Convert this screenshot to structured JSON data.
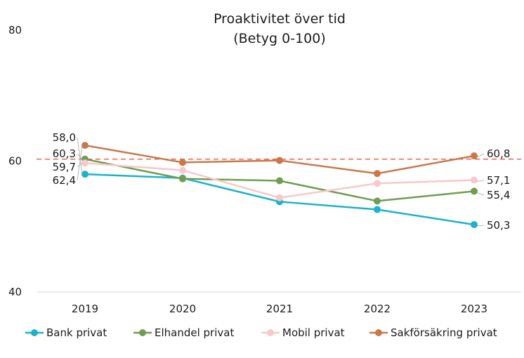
{
  "chart_data": {
    "type": "line",
    "title": "Proaktivitet över tid",
    "subtitle": "(Betyg 0-100)",
    "categories": [
      "2019",
      "2020",
      "2021",
      "2022",
      "2023"
    ],
    "ylim": [
      40,
      80
    ],
    "yticks": [
      "40",
      "60",
      "80"
    ],
    "reference_line": 60.3,
    "grid": false,
    "legend_position": "bottom",
    "series": [
      {
        "name": "Bank privat",
        "color": "#1ab3c9",
        "values": [
          58.0,
          57.4,
          53.8,
          52.6,
          50.3
        ],
        "labels": [
          "58,0",
          "",
          "",
          "",
          "50,3"
        ]
      },
      {
        "name": "Elhandel privat",
        "color": "#6e9e50",
        "values": [
          60.3,
          57.3,
          57.0,
          53.9,
          55.4
        ],
        "labels": [
          "60,3",
          "",
          "",
          "",
          "55,4"
        ]
      },
      {
        "name": "Mobil privat",
        "color": "#f7c9c9",
        "values": [
          59.7,
          58.6,
          54.4,
          56.6,
          57.1
        ],
        "labels": [
          "59,7",
          "",
          "",
          "",
          "57,1"
        ]
      },
      {
        "name": "Sakförsäkring privat",
        "color": "#c8794a",
        "values": [
          62.4,
          59.8,
          60.1,
          58.1,
          60.8
        ],
        "labels": [
          "62,4",
          "",
          "",
          "",
          "60,8"
        ]
      }
    ]
  }
}
